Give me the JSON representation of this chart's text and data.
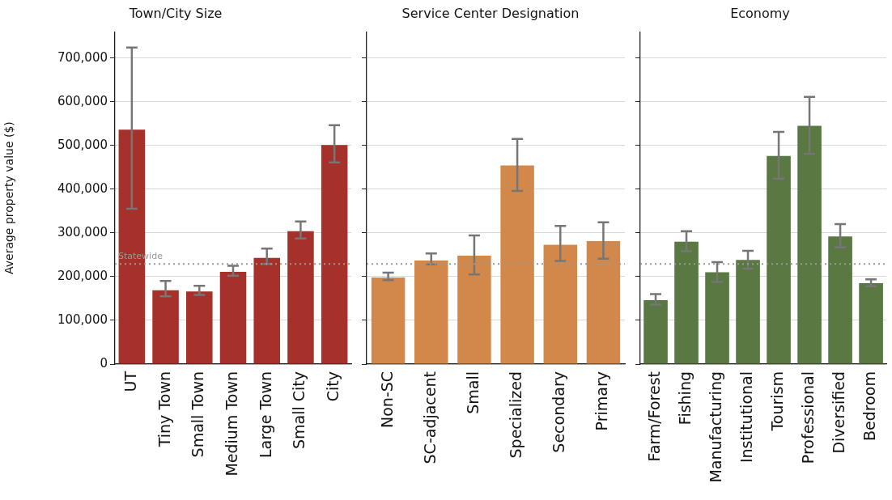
{
  "chart_data": [
    {
      "type": "bar",
      "title": "Town/City Size",
      "ylabel": "Average property value ($)",
      "categories": [
        "UT",
        "Tiny Town",
        "Small Town",
        "Medium Town",
        "Large Town",
        "Small City",
        "City"
      ],
      "series": [
        {
          "color": "#a5312a",
          "values": [
            536000,
            169000,
            166000,
            211000,
            243000,
            304000,
            501000
          ],
          "errors": [
            [
              355000,
              724000
            ],
            [
              155000,
              190000
            ],
            [
              158000,
              179000
            ],
            [
              202000,
              225000
            ],
            [
              229000,
              264000
            ],
            [
              287000,
              326000
            ],
            [
              461000,
              546000
            ]
          ]
        }
      ],
      "ylim": [
        0,
        760000
      ],
      "yticks": [
        0,
        {
          "value": 100000,
          "label": "100,000"
        },
        {
          "value": 200000,
          "label": "200,000"
        },
        {
          "value": 300000,
          "label": "300,000"
        },
        {
          "value": 400000,
          "label": "400,000"
        },
        {
          "value": 500000,
          "label": "500,000"
        },
        {
          "value": 600000,
          "label": "600,000"
        },
        {
          "value": 700000,
          "label": "700,000"
        }
      ],
      "grid": "y",
      "ref_lines": [
        {
          "axis": "y",
          "value": 229000,
          "label": "Statewide",
          "color": "#999999",
          "line_style": "dotted"
        }
      ]
    },
    {
      "type": "bar",
      "title": "Service Center Designation",
      "categories": [
        "Non-SC",
        "SC-adjacent",
        "Small",
        "Specialized",
        "Secondary",
        "Primary"
      ],
      "series": [
        {
          "color": "#d2884a",
          "values": [
            198000,
            237000,
            248000,
            454000,
            273000,
            281000
          ],
          "errors": [
            [
              192000,
              209000
            ],
            [
              228000,
              253000
            ],
            [
              205000,
              294000
            ],
            [
              396000,
              515000
            ],
            [
              236000,
              316000
            ],
            [
              241000,
              324000
            ]
          ]
        }
      ],
      "ylim": [
        0,
        760000
      ],
      "yticks": [
        {
          "value": 0,
          "label": null
        },
        {
          "value": 100000,
          "label": null
        },
        {
          "value": 200000,
          "label": null
        },
        {
          "value": 300000,
          "label": null
        },
        {
          "value": 400000,
          "label": null
        },
        {
          "value": 500000,
          "label": null
        },
        {
          "value": 600000,
          "label": null
        },
        {
          "value": 700000,
          "label": null
        }
      ],
      "grid": "y",
      "tick_labels": "x",
      "ref_lines": [
        {
          "axis": "y",
          "value": 229000,
          "color": "#999999",
          "line_style": "dotted"
        }
      ]
    },
    {
      "type": "bar",
      "title": "Economy",
      "categories": [
        "Farm/Forest",
        "Fishing",
        "Manufacturing",
        "Institutional",
        "Tourism",
        "Professional",
        "Diversified",
        "Bedroom"
      ],
      "series": [
        {
          "color": "#5a7842",
          "values": [
            146000,
            280000,
            210000,
            238000,
            476000,
            545000,
            292000,
            185000
          ],
          "errors": [
            [
              136000,
              160000
            ],
            [
              258000,
              304000
            ],
            [
              188000,
              233000
            ],
            [
              218000,
              259000
            ],
            [
              424000,
              531000
            ],
            [
              481000,
              611000
            ],
            [
              267000,
              320000
            ],
            [
              178000,
              194000
            ]
          ]
        }
      ],
      "ylim": [
        0,
        760000
      ],
      "yticks": [
        {
          "value": 0,
          "label": null
        },
        {
          "value": 100000,
          "label": null
        },
        {
          "value": 200000,
          "label": null
        },
        {
          "value": 300000,
          "label": null
        },
        {
          "value": 400000,
          "label": null
        },
        {
          "value": 500000,
          "label": null
        },
        {
          "value": 600000,
          "label": null
        },
        {
          "value": 700000,
          "label": null
        }
      ],
      "grid": "y",
      "tick_labels": "x",
      "ref_lines": [
        {
          "axis": "y",
          "value": 229000,
          "color": "#999999",
          "line_style": "dotted"
        }
      ]
    }
  ]
}
